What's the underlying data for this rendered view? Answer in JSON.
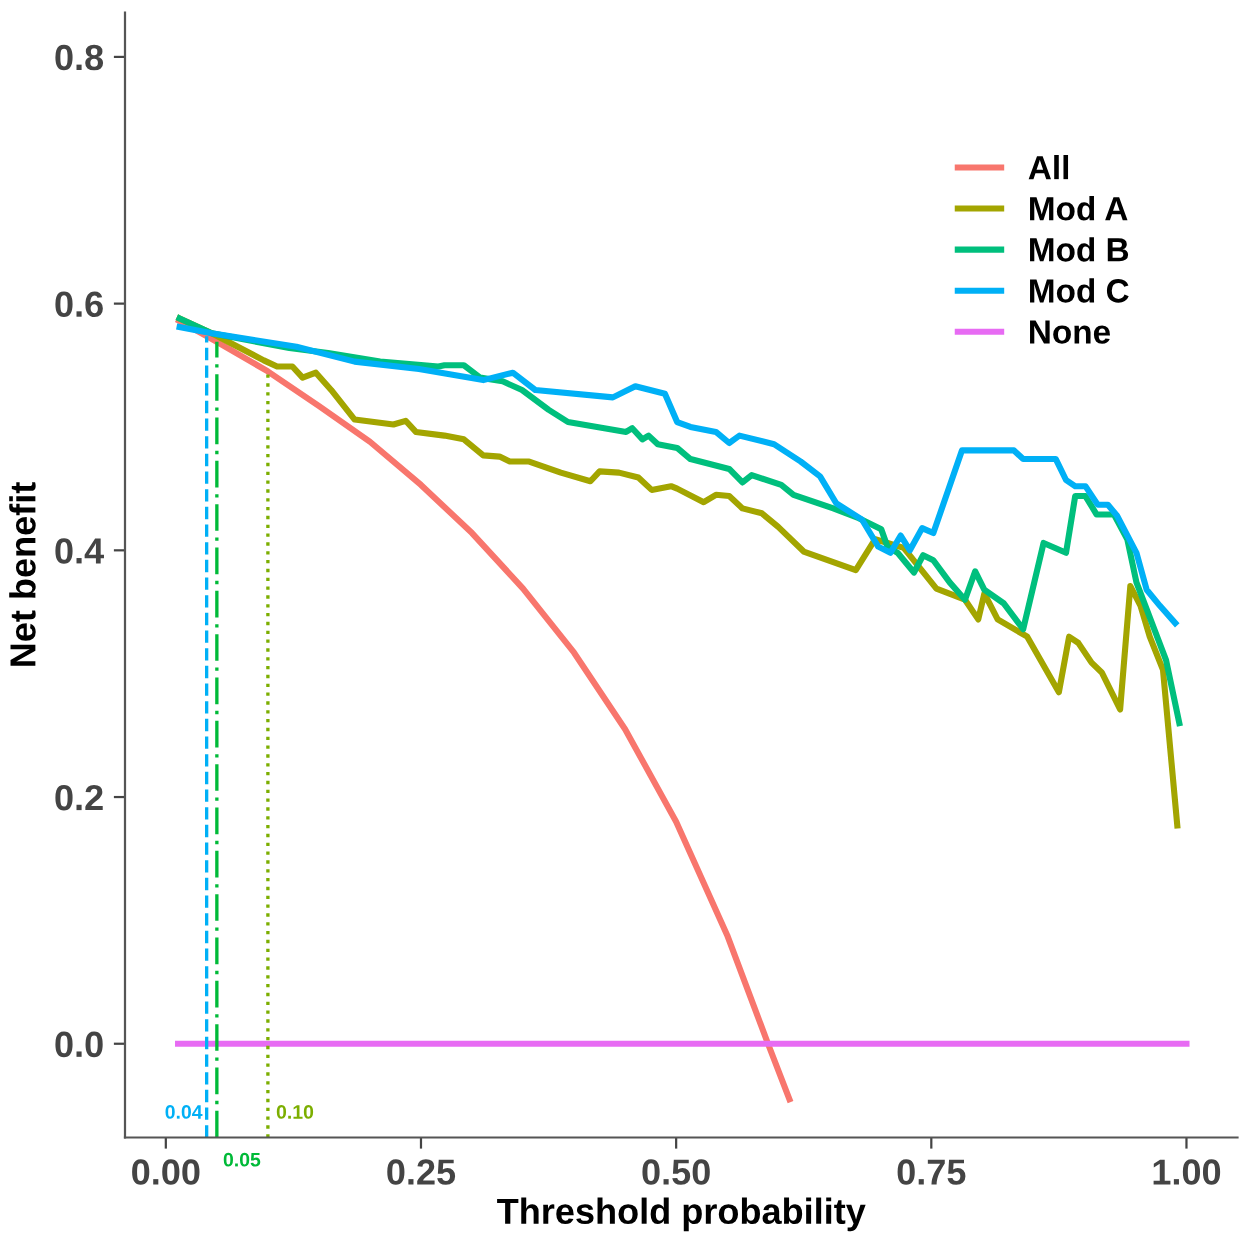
{
  "chart_data": {
    "type": "line",
    "xlabel": "Threshold probability",
    "ylabel": "Net benefit",
    "xlim": [
      -0.04,
      1.05
    ],
    "ylim": [
      -0.076,
      0.836
    ],
    "xticks": [
      {
        "value": 0,
        "label": "0.00"
      },
      {
        "value": 0.25,
        "label": "0.25"
      },
      {
        "value": 0.5,
        "label": "0.50"
      },
      {
        "value": 0.75,
        "label": "0.75"
      },
      {
        "value": 1,
        "label": "1.00"
      }
    ],
    "yticks": [
      {
        "value": 0,
        "label": "0.0"
      },
      {
        "value": 0.2,
        "label": "0.2"
      },
      {
        "value": 0.4,
        "label": "0.4"
      },
      {
        "value": 0.6,
        "label": "0.6"
      },
      {
        "value": 0.8,
        "label": "0.8"
      }
    ],
    "grid": false,
    "legend": "top right",
    "marker": "none",
    "line_style": "solid",
    "series": [
      {
        "name": "All",
        "color": "#f8766d",
        "x": [
          0.013,
          0.05,
          0.1,
          0.15,
          0.2,
          0.25,
          0.3,
          0.35,
          0.4,
          0.45,
          0.5,
          0.55,
          0.59,
          0.611
        ],
        "values": [
          0.586,
          0.569,
          0.545,
          0.517,
          0.488,
          0.453,
          0.414,
          0.369,
          0.317,
          0.255,
          0.18,
          0.088,
          0.0,
          -0.045
        ]
      },
      {
        "name": "Mod A",
        "color": "#a3a500",
        "x": [
          0.0135,
          0.045,
          0.096,
          0.109,
          0.124,
          0.134,
          0.147,
          0.162,
          0.185,
          0.223,
          0.235,
          0.245,
          0.273,
          0.292,
          0.311,
          0.327,
          0.337,
          0.356,
          0.387,
          0.416,
          0.425,
          0.444,
          0.463,
          0.476,
          0.495,
          0.501,
          0.527,
          0.539,
          0.552,
          0.565,
          0.584,
          0.6,
          0.625,
          0.676,
          0.695,
          0.723,
          0.755,
          0.783,
          0.796,
          0.802,
          0.815,
          0.844,
          0.875,
          0.885,
          0.894,
          0.907,
          0.917,
          0.935,
          0.945,
          0.955,
          0.964,
          0.977,
          0.991
        ],
        "values": [
          0.588,
          0.576,
          0.554,
          0.549,
          0.549,
          0.54,
          0.544,
          0.53,
          0.506,
          0.502,
          0.505,
          0.496,
          0.493,
          0.49,
          0.477,
          0.476,
          0.472,
          0.472,
          0.463,
          0.456,
          0.464,
          0.463,
          0.459,
          0.449,
          0.452,
          0.45,
          0.439,
          0.445,
          0.444,
          0.434,
          0.43,
          0.419,
          0.399,
          0.384,
          0.409,
          0.402,
          0.369,
          0.36,
          0.344,
          0.365,
          0.344,
          0.33,
          0.285,
          0.33,
          0.325,
          0.309,
          0.301,
          0.271,
          0.371,
          0.355,
          0.33,
          0.303,
          0.177
        ]
      },
      {
        "name": "Mod B",
        "color": "#00bf7d",
        "x": [
          0.0135,
          0.045,
          0.121,
          0.159,
          0.21,
          0.267,
          0.273,
          0.292,
          0.308,
          0.33,
          0.349,
          0.375,
          0.394,
          0.451,
          0.457,
          0.467,
          0.473,
          0.482,
          0.501,
          0.514,
          0.552,
          0.565,
          0.574,
          0.603,
          0.615,
          0.654,
          0.679,
          0.701,
          0.707,
          0.717,
          0.733,
          0.742,
          0.752,
          0.768,
          0.783,
          0.793,
          0.802,
          0.821,
          0.84,
          0.86,
          0.882,
          0.891,
          0.901,
          0.912,
          0.929,
          0.942,
          0.951,
          0.98,
          0.993
        ],
        "values": [
          0.588,
          0.576,
          0.564,
          0.56,
          0.553,
          0.549,
          0.55,
          0.55,
          0.54,
          0.537,
          0.53,
          0.514,
          0.504,
          0.496,
          0.499,
          0.49,
          0.493,
          0.486,
          0.483,
          0.474,
          0.466,
          0.455,
          0.461,
          0.453,
          0.445,
          0.434,
          0.426,
          0.417,
          0.403,
          0.398,
          0.382,
          0.396,
          0.392,
          0.374,
          0.36,
          0.383,
          0.368,
          0.357,
          0.336,
          0.406,
          0.398,
          0.444,
          0.444,
          0.429,
          0.429,
          0.409,
          0.374,
          0.311,
          0.26
        ]
      },
      {
        "name": "Mod C",
        "color": "#00b0f6",
        "x": [
          0.0135,
          0.045,
          0.128,
          0.185,
          0.248,
          0.311,
          0.34,
          0.362,
          0.438,
          0.46,
          0.489,
          0.501,
          0.514,
          0.539,
          0.552,
          0.562,
          0.596,
          0.622,
          0.641,
          0.657,
          0.682,
          0.698,
          0.71,
          0.72,
          0.729,
          0.741,
          0.752,
          0.78,
          0.831,
          0.84,
          0.872,
          0.882,
          0.891,
          0.901,
          0.913,
          0.923,
          0.932,
          0.951,
          0.961,
          0.974,
          0.989
        ],
        "values": [
          0.581,
          0.576,
          0.565,
          0.553,
          0.547,
          0.538,
          0.544,
          0.53,
          0.524,
          0.533,
          0.527,
          0.504,
          0.5,
          0.496,
          0.487,
          0.493,
          0.486,
          0.472,
          0.46,
          0.438,
          0.425,
          0.403,
          0.398,
          0.412,
          0.4,
          0.418,
          0.414,
          0.481,
          0.481,
          0.474,
          0.474,
          0.457,
          0.452,
          0.452,
          0.437,
          0.437,
          0.428,
          0.398,
          0.368,
          0.355,
          0.341
        ]
      },
      {
        "name": "None",
        "color": "#e76bf3",
        "x": [
          0.012,
          1.0
        ],
        "values": [
          0,
          0
        ]
      }
    ],
    "ref_lines": [
      {
        "axis": "x",
        "value": 0.04,
        "label": "0.04",
        "color": "#00b0f6",
        "line_style": "dashed"
      },
      {
        "axis": "x",
        "value": 0.05,
        "label": "0.05",
        "color": "#00ba38",
        "line_style": "dashdot"
      },
      {
        "axis": "x",
        "value": 0.1,
        "label": "0.10",
        "color": "#7cae00",
        "line_style": "dotted"
      }
    ]
  }
}
